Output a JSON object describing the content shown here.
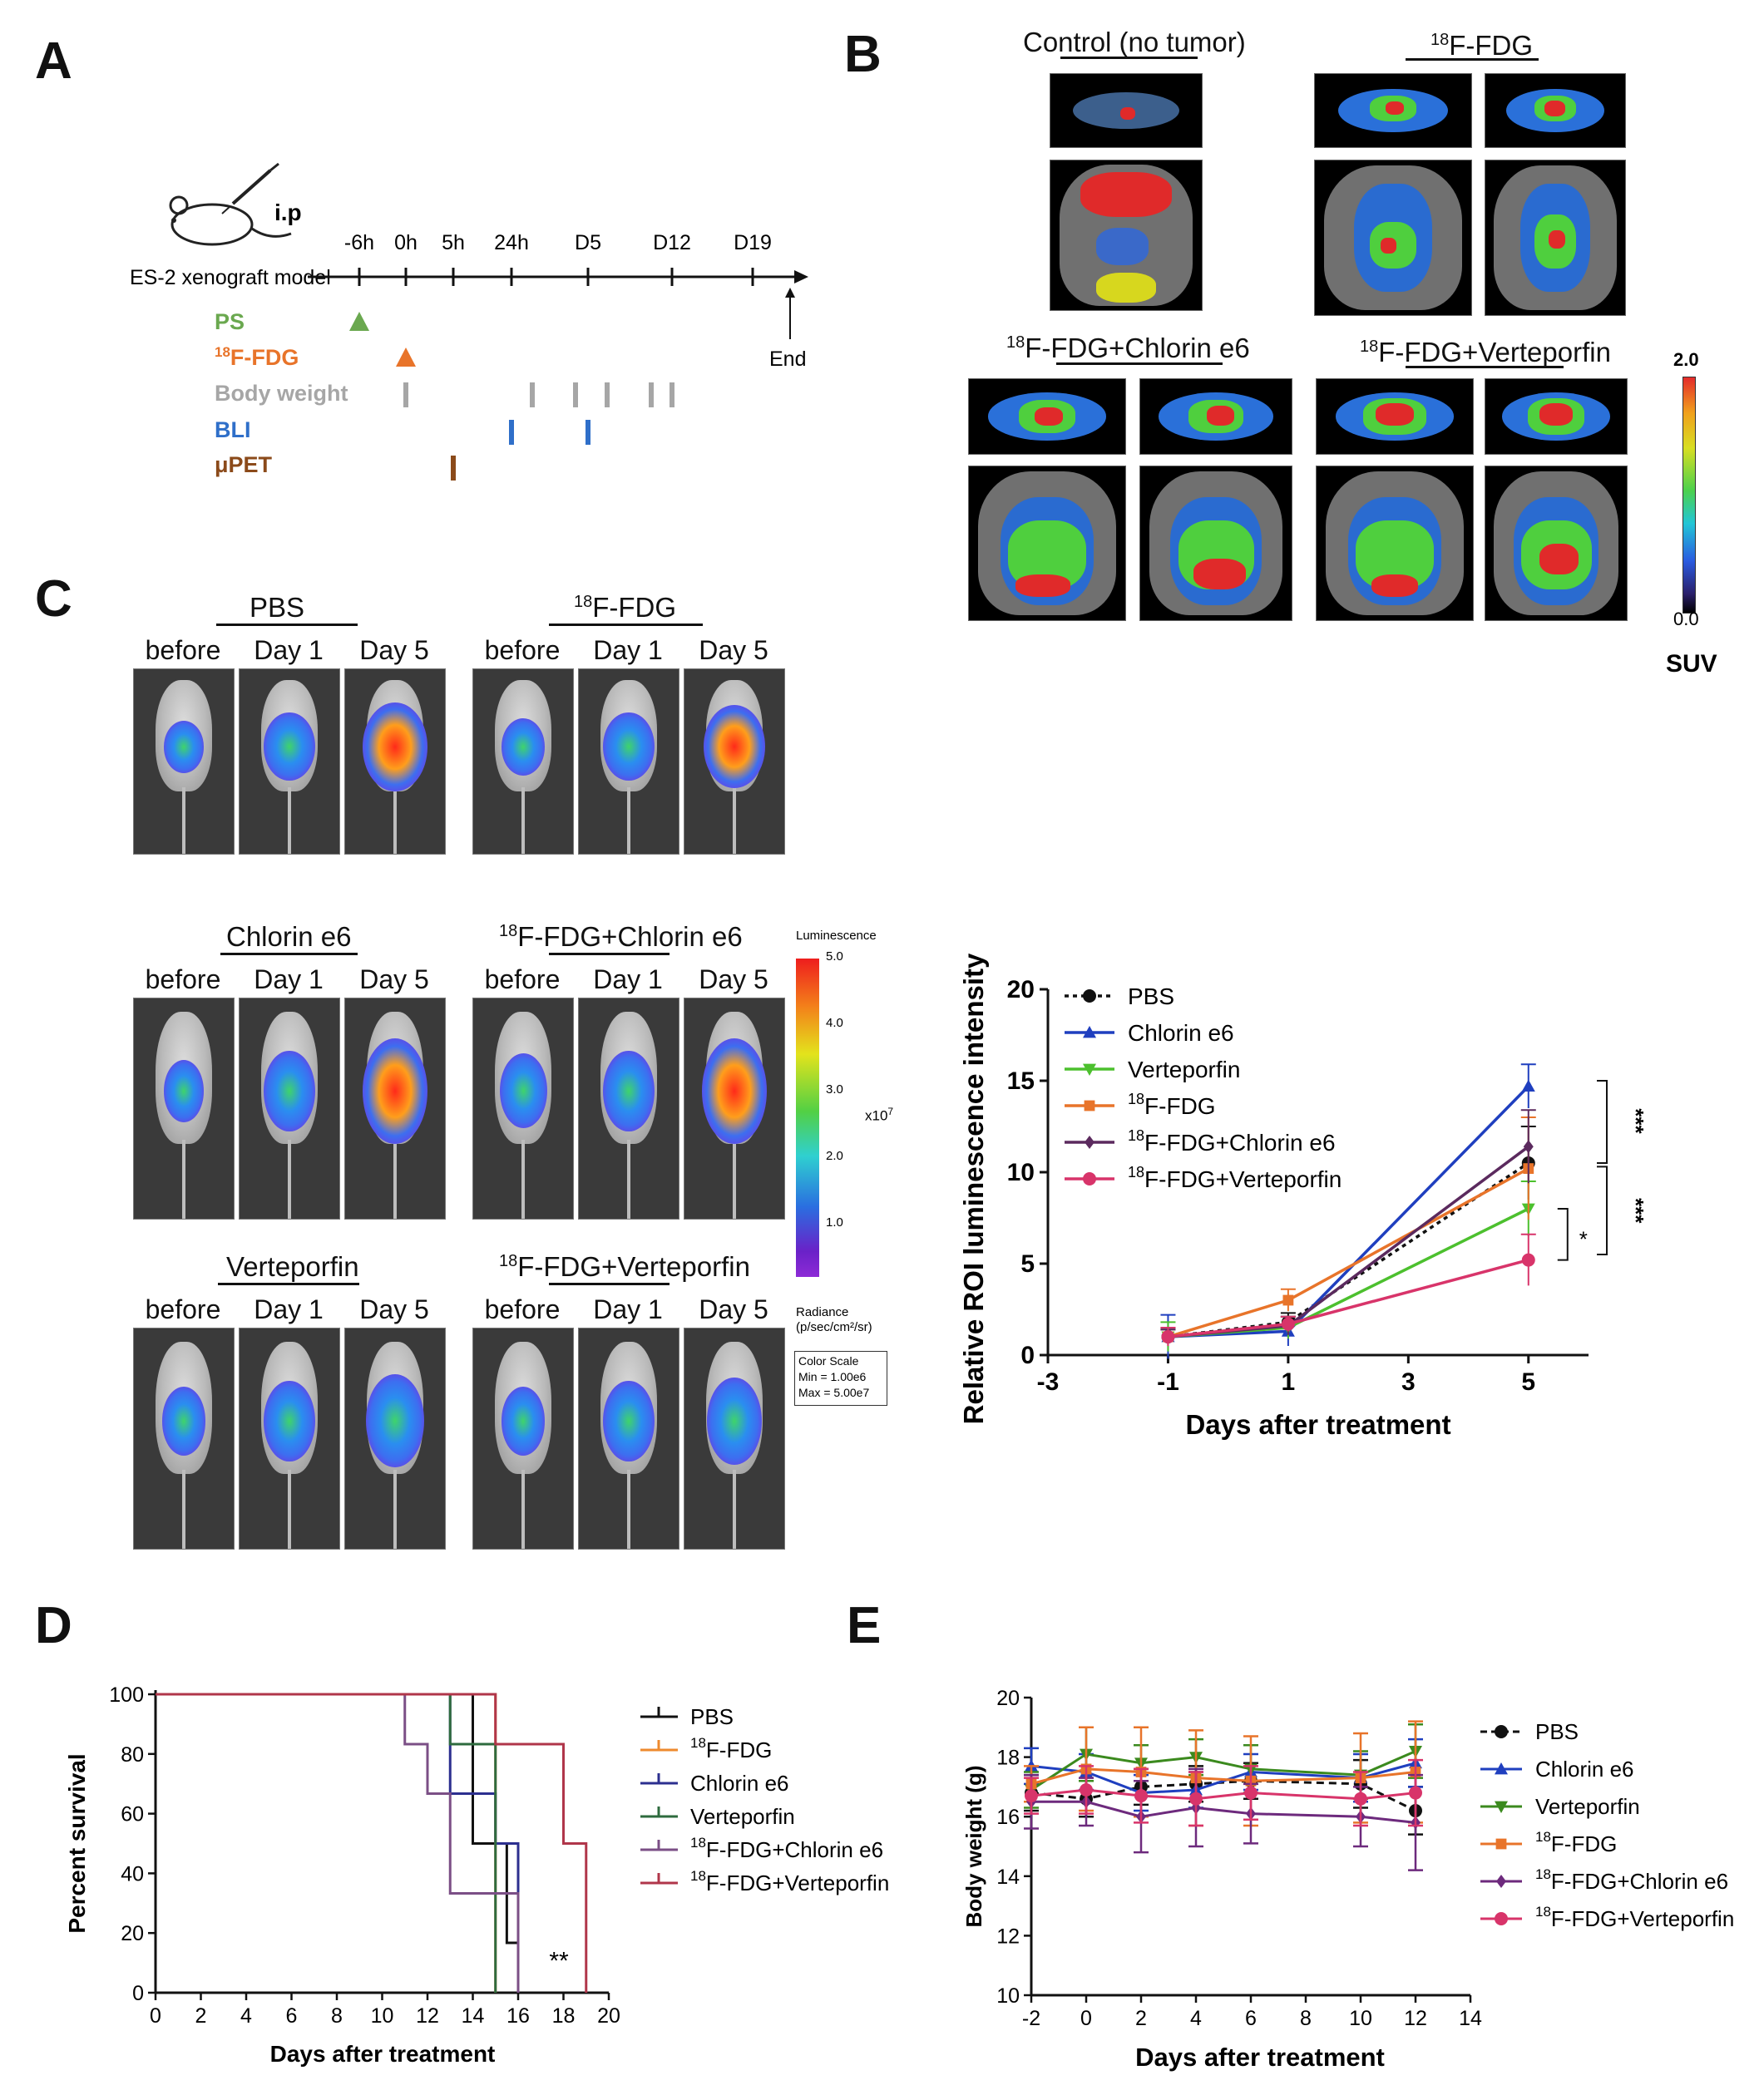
{
  "panels": {
    "a": "A",
    "b": "B",
    "c": "C",
    "d": "D",
    "e": "E"
  },
  "panelA": {
    "route": "i.p",
    "model_label": "ES-2 xenograft model",
    "timepoints": [
      "-6h",
      "0h",
      "5h",
      "24h",
      "D5",
      "D12",
      "D19"
    ],
    "end_label": "End",
    "rows": [
      {
        "label_prefix": "",
        "label_sup": "",
        "label": "PS",
        "color": "#6aa84f"
      },
      {
        "label_prefix": "",
        "label_sup": "18",
        "label": "F-FDG",
        "color": "#e8742a"
      },
      {
        "label_prefix": "",
        "label_sup": "",
        "label": "Body weight",
        "color": "#a6a6a6"
      },
      {
        "label_prefix": "",
        "label_sup": "",
        "label": "BLI",
        "color": "#2f6fc9"
      },
      {
        "label_prefix": "",
        "label_sup": "",
        "label": "μPET",
        "color": "#8b4a1a"
      }
    ]
  },
  "panelB": {
    "titles": {
      "control": "Control (no tumor)",
      "fdg_sup": "18",
      "fdg": "F-FDG",
      "chlorin": "F-FDG+Chlorin e6",
      "vert": "F-FDG+Verteporfin"
    },
    "scale_max": "2.0",
    "scale_min": "0.0",
    "scale_unit": "SUV"
  },
  "panelC": {
    "groups": {
      "pbs": "PBS",
      "fdg": "F-FDG",
      "chlorin": "Chlorin e6",
      "fdg_chlorin": "F-FDG+Chlorin e6",
      "vert": "Verteporfin",
      "fdg_vert": "F-FDG+Verteporfin",
      "sup": "18"
    },
    "cols": {
      "before": "before",
      "day1": "Day 1",
      "day5": "Day 5"
    },
    "colorbar": {
      "title": "Luminescence",
      "ticks": [
        "5.0",
        "4.0",
        "3.0",
        "2.0",
        "1.0"
      ],
      "exponent_base": "x10",
      "exponent": "7",
      "radiance": "Radiance",
      "radiance_unit": "(p/sec/cm²/sr)",
      "scale_title": "Color Scale",
      "scale_min": "Min = 1.00e6",
      "scale_max": "Max = 5.00e7"
    }
  },
  "colors": {
    "pbs": "#111111",
    "chlorin": "#1f3fbf",
    "vert": "#4cc02e",
    "fdg": "#e8742a",
    "fdg_chlorin": "#5b2a5e",
    "fdg_vert": "#d8346a",
    "d_pbs": "#111111",
    "d_fdg": "#ee8a2e",
    "d_chlorin": "#2c2f8f",
    "d_vert": "#2e6b3e",
    "d_fdg_chlorin": "#7b4f86",
    "d_fdg_vert": "#b0364a",
    "e_vert": "#3b8a1e",
    "e_fdg_chlorin": "#6d2a7d"
  },
  "chart_data": [
    {
      "id": "C-line",
      "type": "line",
      "title": "",
      "xlabel": "Days after treatment",
      "ylabel": "Relative ROI luminescence intensity",
      "xlim": [
        -3,
        6
      ],
      "ylim": [
        0,
        20
      ],
      "xticks": [
        "-3",
        "-1",
        "1",
        "3",
        "5"
      ],
      "yticks": [
        "0",
        "5",
        "10",
        "15",
        "20"
      ],
      "x": [
        -1,
        1,
        5
      ],
      "series": [
        {
          "name": "PBS",
          "values": [
            1.0,
            1.8,
            10.5
          ],
          "err": [
            0.4,
            0.5,
            2.0
          ]
        },
        {
          "name": "Chlorin e6",
          "values": [
            1.0,
            1.3,
            14.7
          ],
          "err": [
            1.2,
            0.8,
            1.2
          ]
        },
        {
          "name": "Verteporfin",
          "values": [
            1.0,
            1.5,
            8.0
          ],
          "err": [
            0.8,
            0.6,
            1.5
          ]
        },
        {
          "name": "F-FDG",
          "values": [
            1.0,
            3.0,
            10.2
          ],
          "err": [
            0.5,
            0.6,
            2.8
          ]
        },
        {
          "name": "F-FDG+Chlorin e6",
          "values": [
            1.0,
            1.6,
            11.4
          ],
          "err": [
            0.4,
            0.5,
            2.0
          ]
        },
        {
          "name": "F-FDG+Verteporfin",
          "values": [
            1.0,
            1.7,
            5.2
          ],
          "err": [
            0.5,
            0.4,
            1.4
          ]
        }
      ],
      "annotations": [
        "***",
        "***",
        "*"
      ]
    },
    {
      "id": "D-survival",
      "type": "line",
      "xlabel": "Days after treatment",
      "ylabel": "Percent survival",
      "xlim": [
        0,
        20
      ],
      "ylim": [
        0,
        100
      ],
      "xticks": [
        "0",
        "2",
        "4",
        "6",
        "8",
        "10",
        "12",
        "14",
        "16",
        "18",
        "20"
      ],
      "yticks": [
        "0",
        "20",
        "40",
        "60",
        "80",
        "100"
      ],
      "series": [
        {
          "name": "PBS",
          "steps": [
            [
              0,
              100
            ],
            [
              14,
              100
            ],
            [
              14,
              50
            ],
            [
              15.5,
              50
            ],
            [
              15.5,
              16.7
            ],
            [
              16,
              16.7
            ],
            [
              16,
              0
            ]
          ]
        },
        {
          "name": "F-FDG",
          "steps": [
            [
              0,
              100
            ],
            [
              15,
              100
            ],
            [
              15,
              0
            ]
          ]
        },
        {
          "name": "Chlorin e6",
          "steps": [
            [
              0,
              100
            ],
            [
              13,
              100
            ],
            [
              13,
              66.7
            ],
            [
              15,
              66.7
            ],
            [
              15,
              50
            ],
            [
              16,
              50
            ],
            [
              16,
              0
            ]
          ]
        },
        {
          "name": "Verteporfin",
          "steps": [
            [
              0,
              100
            ],
            [
              13,
              100
            ],
            [
              13,
              83.3
            ],
            [
              15,
              83.3
            ],
            [
              15,
              0
            ]
          ]
        },
        {
          "name": "F-FDG+Chlorin e6",
          "steps": [
            [
              0,
              100
            ],
            [
              11,
              100
            ],
            [
              11,
              83.3
            ],
            [
              12,
              83.3
            ],
            [
              12,
              66.7
            ],
            [
              13,
              66.7
            ],
            [
              13,
              33.3
            ],
            [
              15,
              33.3
            ],
            [
              15,
              33.3
            ],
            [
              16,
              33.3
            ],
            [
              16,
              0
            ]
          ]
        },
        {
          "name": "F-FDG+Verteporfin",
          "steps": [
            [
              0,
              100
            ],
            [
              15,
              100
            ],
            [
              15,
              83.3
            ],
            [
              18,
              83.3
            ],
            [
              18,
              50
            ],
            [
              19,
              50
            ],
            [
              19,
              0
            ]
          ]
        }
      ],
      "annotation": "**"
    },
    {
      "id": "E-bodyweight",
      "type": "line",
      "xlabel": "Days after treatment",
      "ylabel": "Body weight (g)",
      "xlim": [
        -2,
        14
      ],
      "ylim": [
        10,
        20
      ],
      "xticks": [
        "-2",
        "0",
        "2",
        "4",
        "6",
        "8",
        "10",
        "12",
        "14"
      ],
      "yticks": [
        "10",
        "12",
        "14",
        "16",
        "18",
        "20"
      ],
      "x": [
        -2,
        0,
        2,
        4,
        6,
        10,
        12
      ],
      "series": [
        {
          "name": "PBS",
          "values": [
            16.8,
            16.6,
            17.0,
            17.1,
            17.2,
            17.1,
            16.2
          ],
          "err": [
            0.6,
            0.6,
            0.6,
            0.6,
            0.6,
            0.8,
            0.8
          ]
        },
        {
          "name": "Chlorin e6",
          "values": [
            17.7,
            17.5,
            16.8,
            16.9,
            17.5,
            17.3,
            17.8
          ],
          "err": [
            0.6,
            0.6,
            0.6,
            0.6,
            0.6,
            0.8,
            0.8
          ]
        },
        {
          "name": "Verteporfin",
          "values": [
            16.9,
            18.1,
            17.8,
            18.0,
            17.6,
            17.4,
            18.2
          ],
          "err": [
            0.6,
            0.9,
            0.6,
            0.6,
            0.8,
            0.8,
            0.9
          ]
        },
        {
          "name": "F-FDG",
          "values": [
            17.1,
            17.6,
            17.5,
            17.3,
            17.2,
            17.3,
            17.5
          ],
          "err": [
            0.6,
            1.4,
            1.5,
            1.6,
            1.5,
            1.5,
            1.7
          ]
        },
        {
          "name": "F-FDG+Chlorin e6",
          "values": [
            16.5,
            16.5,
            16.0,
            16.3,
            16.1,
            16.0,
            15.8
          ],
          "err": [
            0.9,
            0.8,
            1.2,
            1.3,
            1.0,
            1.0,
            1.6
          ]
        },
        {
          "name": "F-FDG+Verteporfin",
          "values": [
            16.7,
            16.9,
            16.7,
            16.6,
            16.8,
            16.6,
            16.8
          ],
          "err": [
            0.6,
            0.8,
            0.9,
            0.9,
            0.9,
            0.9,
            1.1
          ]
        }
      ]
    }
  ]
}
